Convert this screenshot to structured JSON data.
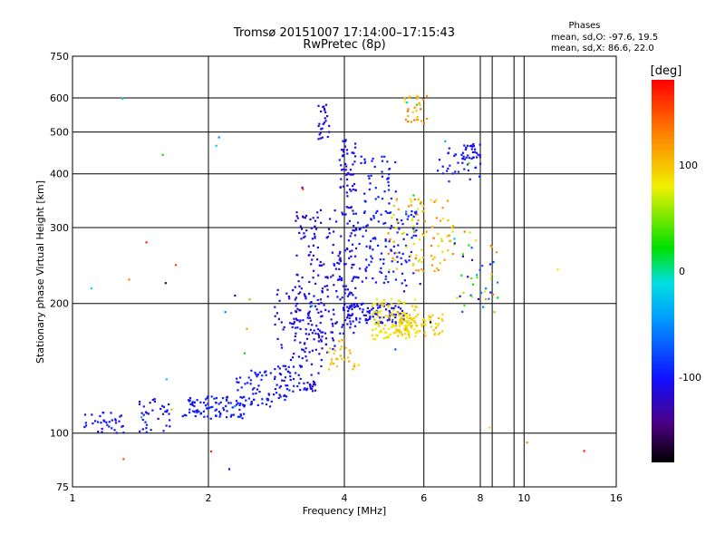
{
  "chart_data": {
    "type": "scatter",
    "title": "Tromsø 20151007 17:14:00–17:15:43",
    "subtitle": "RwPretec (8p)",
    "xlabel": "Frequency [MHz]",
    "ylabel": "Stationary phase Virtual Height [km]",
    "x_scale": "log",
    "y_scale": "log",
    "xlim": [
      1,
      16
    ],
    "ylim": [
      75,
      750
    ],
    "x_ticks": [
      1,
      2,
      4,
      6,
      8,
      10,
      16
    ],
    "x_tick_labels": [
      "1",
      "2",
      "4",
      "6",
      "8",
      "10",
      "16"
    ],
    "x_extra_gridlines": [
      8.5,
      9.5
    ],
    "y_ticks": [
      75,
      100,
      200,
      300,
      400,
      500,
      600,
      750
    ],
    "y_tick_labels": [
      "75",
      "100",
      "200",
      "300",
      "400",
      "500",
      "600",
      "750"
    ],
    "grid": true,
    "legend": {
      "title": "Phases",
      "lines": [
        "mean, sd,O: -97.6, 19.5",
        "mean, sd,X:  86.6, 22.0"
      ],
      "placement": "top-right"
    },
    "colorbar": {
      "label": "[deg]",
      "range": [
        -180,
        180
      ],
      "ticks": [
        100,
        0,
        -100
      ],
      "tick_labels": [
        "100",
        "0",
        "-100"
      ],
      "colormap": "rainbow"
    },
    "clusters": [
      {
        "f": [
          1.05,
          1.3
        ],
        "h": [
          100,
          112
        ],
        "phase": [
          -110,
          -95
        ],
        "n": 35
      },
      {
        "f": [
          1.4,
          1.65
        ],
        "h": [
          100,
          120
        ],
        "phase": [
          -110,
          -95
        ],
        "n": 35
      },
      {
        "f": [
          1.75,
          2.4
        ],
        "h": [
          108,
          122
        ],
        "phase": [
          -105,
          -90
        ],
        "n": 90
      },
      {
        "f": [
          2.3,
          3.2
        ],
        "h": [
          115,
          140
        ],
        "phase": [
          -110,
          -90
        ],
        "n": 90
      },
      {
        "f": [
          2.8,
          3.6
        ],
        "h": [
          135,
          215
        ],
        "phase": [
          -120,
          -95
        ],
        "n": 80
      },
      {
        "f": [
          3.1,
          3.9
        ],
        "h": [
          150,
          330
        ],
        "phase": [
          -125,
          -100
        ],
        "n": 170
      },
      {
        "f": [
          3.25,
          3.45
        ],
        "h": [
          125,
          132
        ],
        "phase": [
          -120,
          -100
        ],
        "n": 20
      },
      {
        "f": [
          3.5,
          3.7
        ],
        "h": [
          480,
          580
        ],
        "phase": [
          -120,
          -100
        ],
        "n": 25
      },
      {
        "f": [
          3.9,
          4.25
        ],
        "h": [
          170,
          490
        ],
        "phase": [
          -115,
          -100
        ],
        "n": 140
      },
      {
        "f": [
          4.1,
          5.5
        ],
        "h": [
          180,
          200
        ],
        "phase": [
          -110,
          -95
        ],
        "n": 90
      },
      {
        "f": [
          4.2,
          5.8
        ],
        "h": [
          220,
          330
        ],
        "phase": [
          -105,
          -90
        ],
        "n": 120
      },
      {
        "f": [
          4.3,
          5.2
        ],
        "h": [
          340,
          440
        ],
        "phase": [
          -105,
          -90
        ],
        "n": 40
      },
      {
        "f": [
          4.6,
          5.8
        ],
        "h": [
          165,
          205
        ],
        "phase": [
          70,
          100
        ],
        "n": 110
      },
      {
        "f": [
          5.0,
          6.6
        ],
        "h": [
          168,
          190
        ],
        "phase": [
          80,
          110
        ],
        "n": 80
      },
      {
        "f": [
          5.0,
          7.0
        ],
        "h": [
          235,
          350
        ],
        "phase": [
          60,
          140
        ],
        "n": 100
      },
      {
        "f": [
          3.6,
          4.3
        ],
        "h": [
          140,
          165
        ],
        "phase": [
          90,
          115
        ],
        "n": 30
      },
      {
        "f": [
          5.4,
          6.1
        ],
        "h": [
          520,
          610
        ],
        "phase": [
          80,
          140
        ],
        "n": 30
      },
      {
        "f": [
          7.3,
          8.0
        ],
        "h": [
          430,
          470
        ],
        "phase": [
          -110,
          -100
        ],
        "n": 30
      },
      {
        "f": [
          6.4,
          8.0
        ],
        "h": [
          380,
          460
        ],
        "phase": [
          -105,
          -90
        ],
        "n": 30
      },
      {
        "f": [
          7.0,
          8.8
        ],
        "h": [
          190,
          300
        ],
        "phase": [
          -140,
          140
        ],
        "n": 45
      },
      {
        "f": [
          1.0,
          14.0
        ],
        "h": [
          78,
          640
        ],
        "phase": [
          -180,
          180
        ],
        "n": 40
      }
    ]
  }
}
